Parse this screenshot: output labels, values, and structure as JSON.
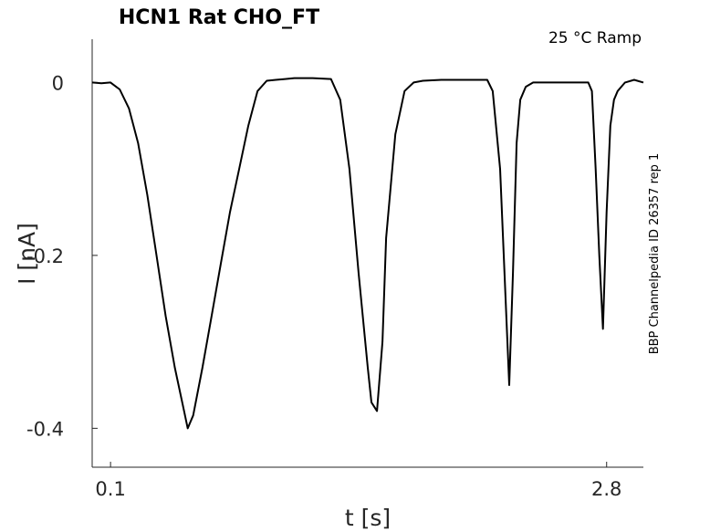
{
  "chart_data": {
    "type": "line",
    "title": "HCN1  Rat  CHO_FT",
    "annotation": "25 °C  Ramp",
    "side_label": "BBP Channelpedia ID 26357 rep 1",
    "xlabel": "t [s]",
    "ylabel": "I [nA]",
    "xlim": [
      0.0,
      3.0
    ],
    "ylim": [
      -0.445,
      0.05
    ],
    "x_ticks": [
      {
        "value": 0.1,
        "label": "0.1"
      },
      {
        "value": 2.8,
        "label": "2.8"
      }
    ],
    "y_ticks": [
      {
        "value": 0,
        "label": "0"
      },
      {
        "value": -0.2,
        "label": "-0.2"
      },
      {
        "value": -0.4,
        "label": "-0.4"
      }
    ],
    "grid": false,
    "line_color": "#000000",
    "series": [
      {
        "x": [
          0.0,
          0.05,
          0.1,
          0.15,
          0.2,
          0.25,
          0.3,
          0.35,
          0.4,
          0.45,
          0.5,
          0.52,
          0.55,
          0.6,
          0.65,
          0.7,
          0.75,
          0.8,
          0.85,
          0.9,
          0.95,
          1.0,
          1.05,
          1.1,
          1.2,
          1.3,
          1.35,
          1.4,
          1.45,
          1.5,
          1.52,
          1.55,
          1.58,
          1.6,
          1.65,
          1.7,
          1.75,
          1.8,
          1.9,
          2.0,
          2.15,
          2.18,
          2.22,
          2.25,
          2.27,
          2.29,
          2.31,
          2.33,
          2.36,
          2.4,
          2.5,
          2.6,
          2.7,
          2.72,
          2.74,
          2.76,
          2.78,
          2.8,
          2.82,
          2.84,
          2.86,
          2.88,
          2.9,
          2.95,
          3.0
        ],
        "y": [
          0.0,
          -0.001,
          0.0,
          -0.008,
          -0.03,
          -0.07,
          -0.13,
          -0.2,
          -0.27,
          -0.33,
          -0.38,
          -0.4,
          -0.385,
          -0.33,
          -0.27,
          -0.21,
          -0.15,
          -0.1,
          -0.05,
          -0.01,
          0.002,
          0.003,
          0.004,
          0.005,
          0.005,
          0.004,
          -0.02,
          -0.1,
          -0.22,
          -0.33,
          -0.37,
          -0.38,
          -0.3,
          -0.18,
          -0.06,
          -0.01,
          0.0,
          0.002,
          0.003,
          0.003,
          0.003,
          -0.01,
          -0.1,
          -0.25,
          -0.35,
          -0.22,
          -0.07,
          -0.02,
          -0.005,
          0.0,
          0.0,
          0.0,
          0.0,
          -0.01,
          -0.1,
          -0.2,
          -0.285,
          -0.15,
          -0.05,
          -0.02,
          -0.01,
          -0.005,
          0.0,
          0.003,
          0.0
        ]
      }
    ]
  }
}
